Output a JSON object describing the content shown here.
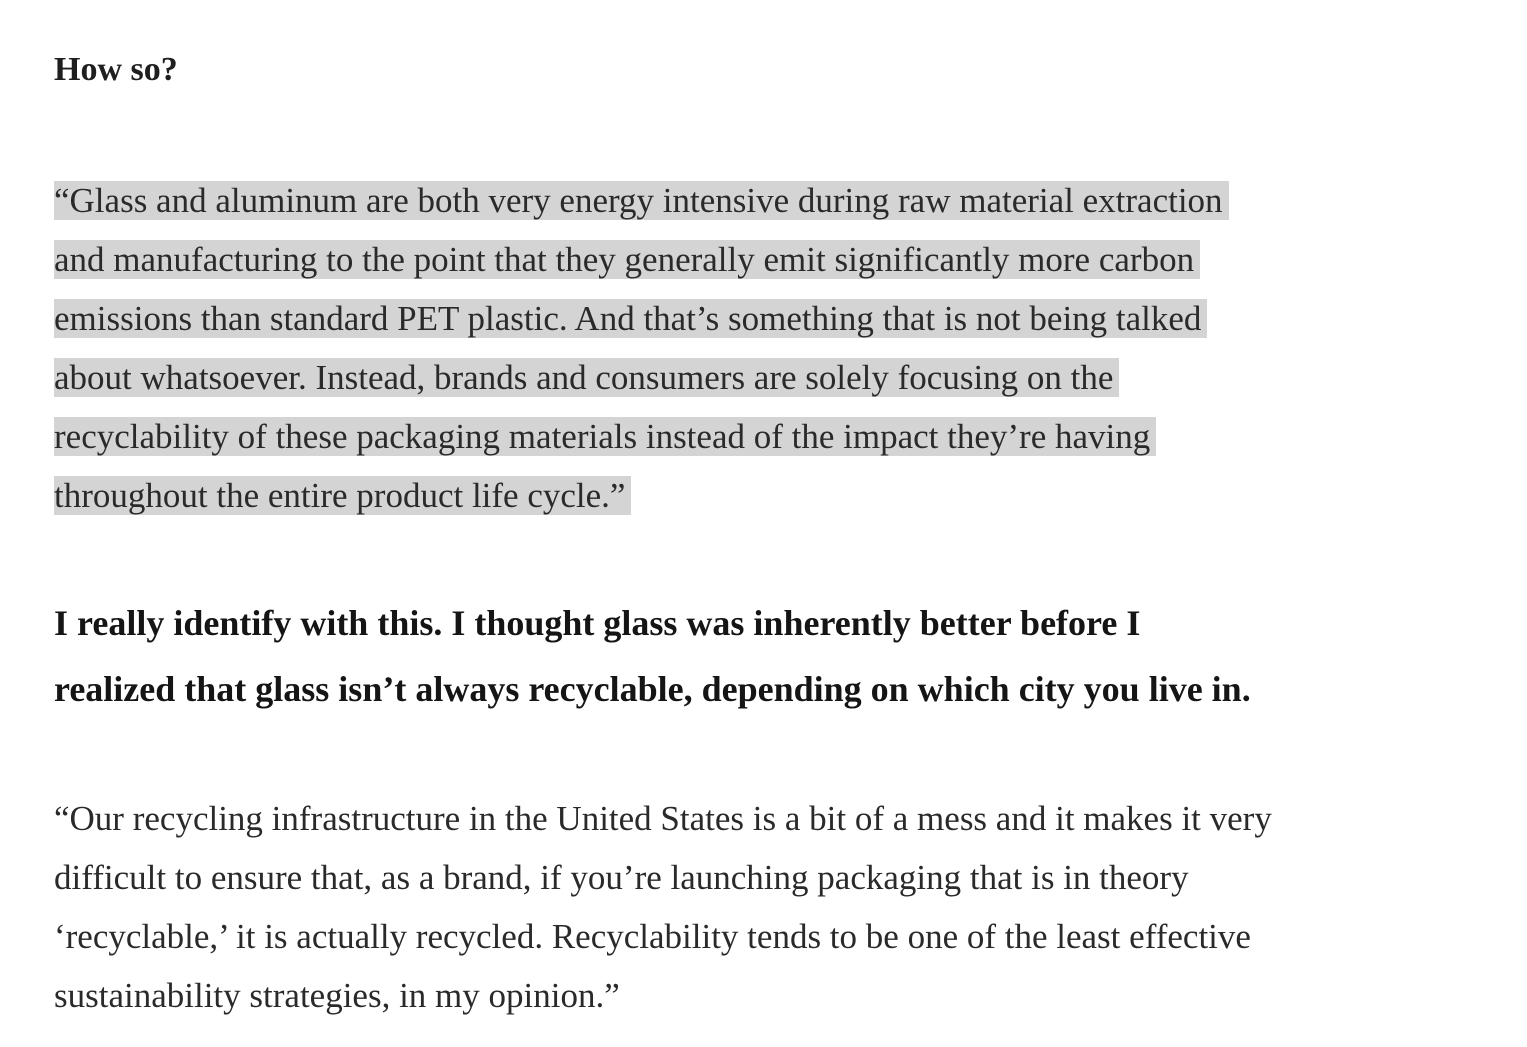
{
  "heading": "How so?",
  "quote_1": {
    "lines": [
      "“Glass and aluminum are both very energy intensive during raw material extraction",
      "and manufacturing to the point that they generally emit significantly more carbon",
      "emissions than standard PET plastic. And that’s something that is not being talked",
      "about whatsoever. Instead, brands and consumers are solely focusing on the",
      "recyclability of these packaging materials instead of the impact they’re having",
      "throughout the entire product life cycle.”"
    ],
    "highlight_color": "#d4d4d4"
  },
  "question_2": {
    "lines": [
      "I really identify with this. I thought glass was inherently better before I",
      "realized that glass isn’t always recyclable, depending on which city you live in."
    ]
  },
  "quote_2": {
    "lines": [
      "“Our recycling infrastructure in the United States is a bit of a mess and it makes it very",
      "difficult to ensure that, as a brand, if you’re launching packaging that is in theory",
      "‘recyclable,’ it is actually recycled. Recyclability tends to be one of the least effective",
      "sustainability strategies, in my opinion.”"
    ]
  }
}
